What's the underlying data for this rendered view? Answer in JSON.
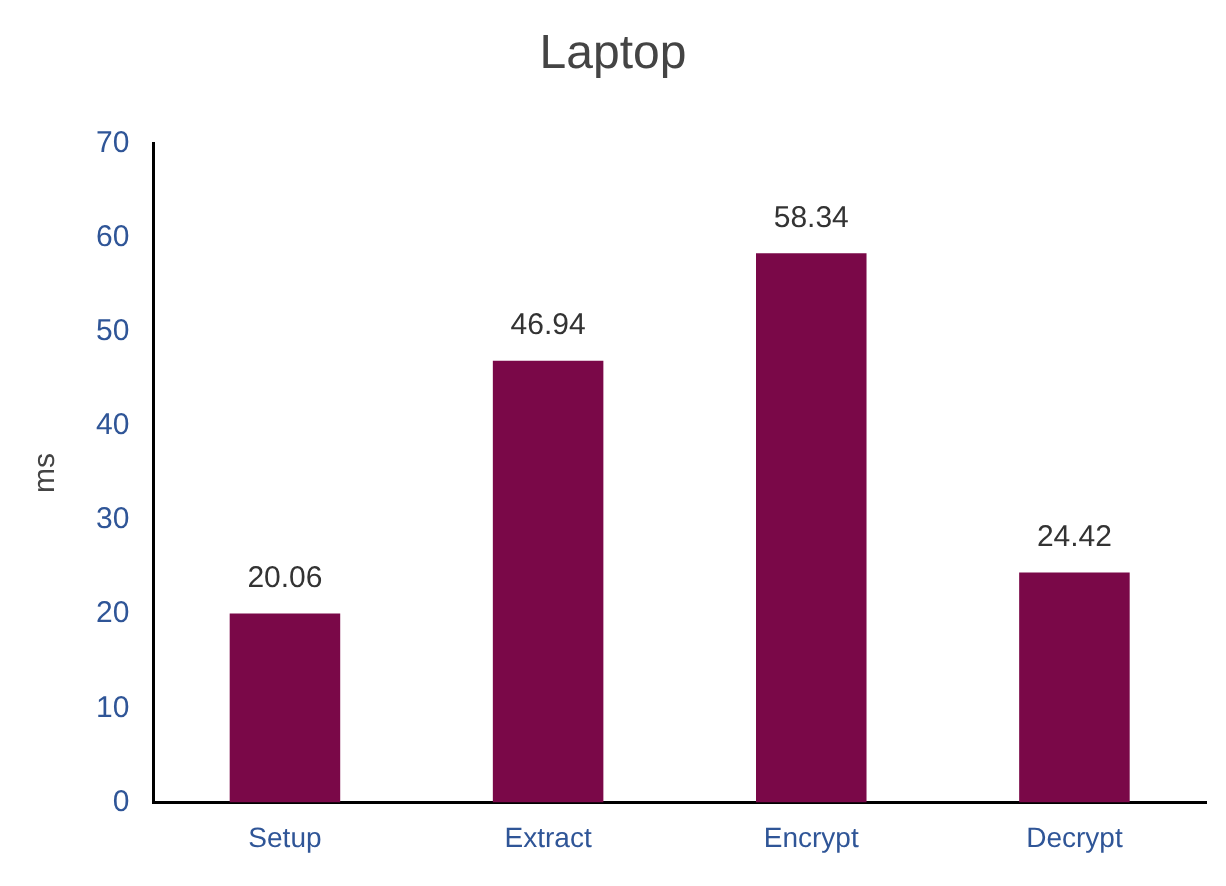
{
  "chart_data": {
    "type": "bar",
    "title": "Laptop",
    "ylabel": "ms",
    "categories": [
      "Setup",
      "Extract",
      "Encrypt",
      "Decrypt"
    ],
    "values": [
      20.06,
      46.94,
      58.34,
      24.42
    ],
    "color": "#7a0848",
    "ylim": [
      0,
      70
    ],
    "yticks": [
      0,
      10,
      20,
      30,
      40,
      50,
      60,
      70
    ],
    "grid": false,
    "data_labels": true
  }
}
